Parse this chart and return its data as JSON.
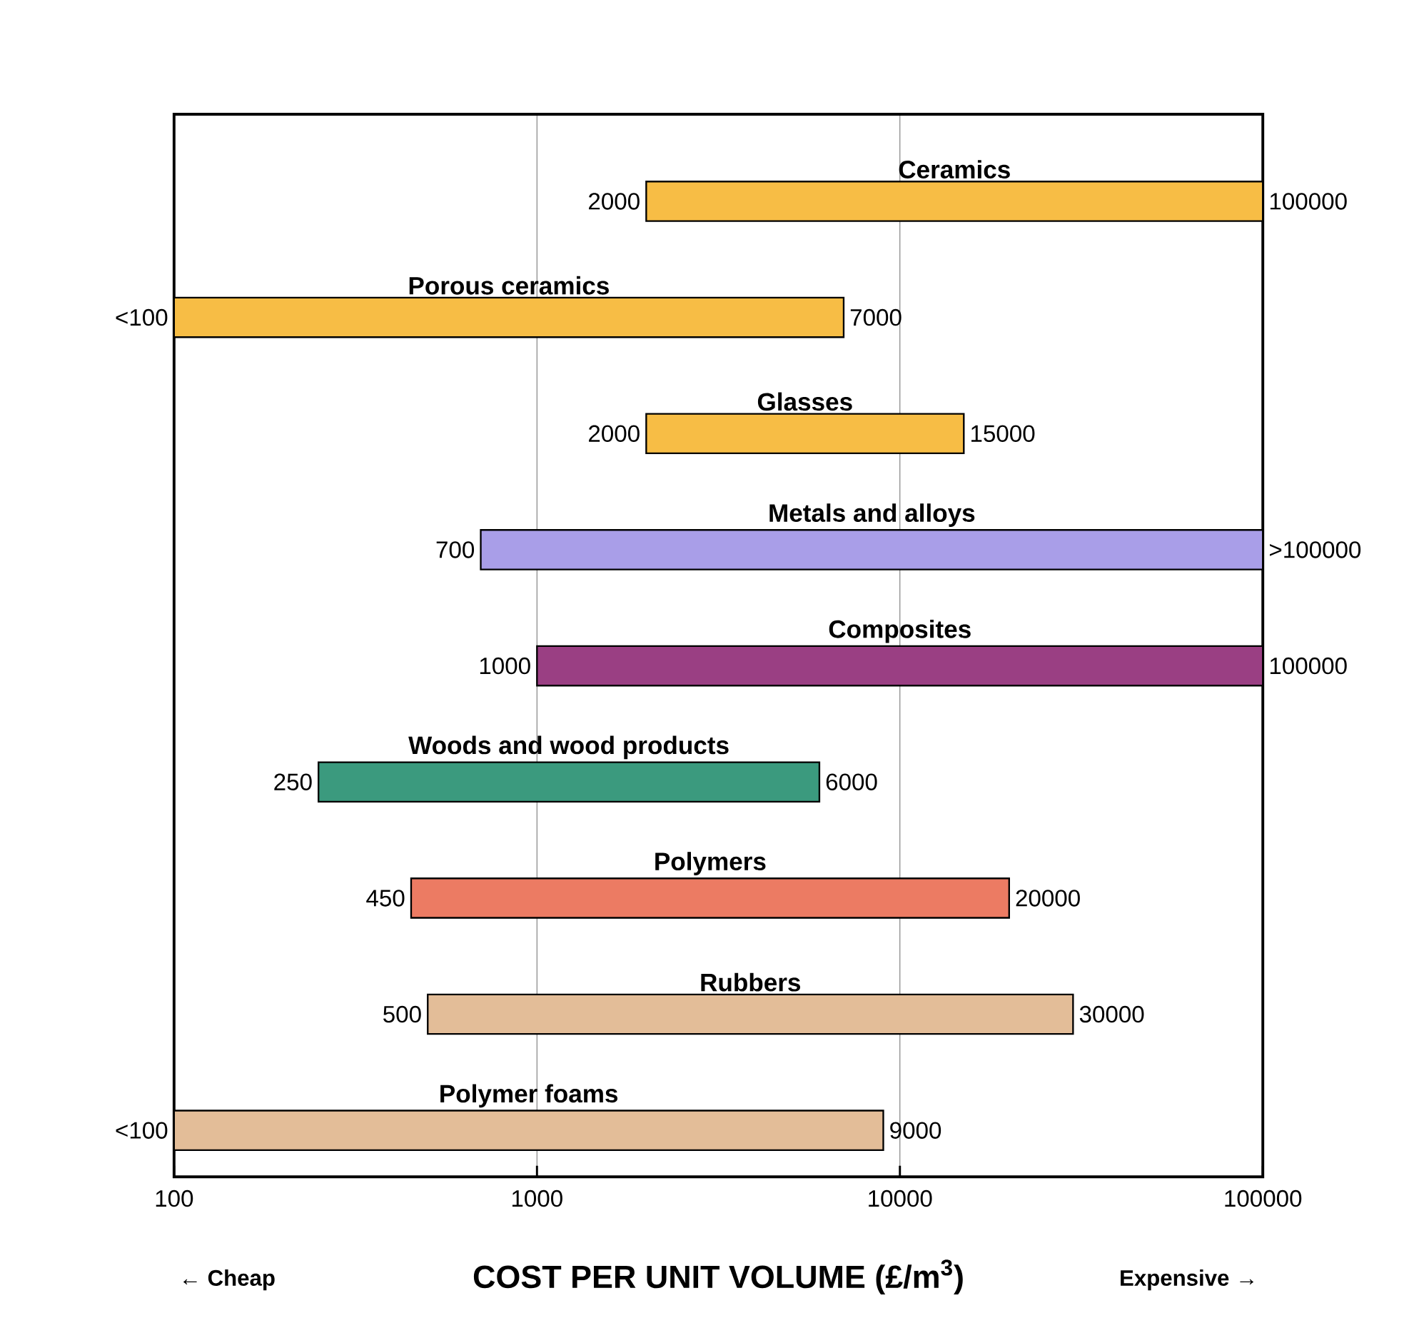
{
  "chart_data": {
    "type": "bar",
    "orientation": "horizontal",
    "xlabel": "COST PER UNIT VOLUME (£/m$^{3}$)",
    "categories": [
      "Ceramics",
      "Porous ceramics",
      "Glasses",
      "Metals and alloys",
      "Composites",
      "Woods and wood products",
      "Polymers",
      "Rubbers",
      "Polymer foams"
    ],
    "base": [
      2000,
      100,
      2000,
      700,
      1000,
      250,
      450,
      500,
      100
    ],
    "values": [
      98000,
      6900,
      13000,
      99300,
      99000,
      5750,
      19550,
      29500,
      8900
    ],
    "value_labels": [
      "100000",
      "7000",
      "15000",
      ">100000",
      "100000",
      "6000",
      "20000",
      "30000",
      "9000"
    ],
    "colors": [
      "#f7bd45",
      "#f7bd45",
      "#f7bd45",
      "#a99ee8",
      "#9a3f83",
      "#3b9a7e",
      "#ec7b63",
      "#e3bd98",
      "#e3bd98"
    ],
    "log": "x",
    "xlim": [
      100,
      100000
    ],
    "xticks": [
      100,
      1000,
      10000,
      100000
    ],
    "grid": "x",
    "annotations": [
      {
        "text": "2000",
        "x": 2000,
        "y": "Ceramics"
      },
      {
        "text": "<100",
        "x": 100,
        "y": "Porous ceramics"
      },
      {
        "text": "2000",
        "x": 2000,
        "y": "Glasses"
      },
      {
        "text": "700",
        "x": 700,
        "y": "Metals and alloys"
      },
      {
        "text": "1000",
        "x": 1000,
        "y": "Composites"
      },
      {
        "text": "250",
        "x": 250,
        "y": "Woods and wood products"
      },
      {
        "text": "450",
        "x": 450,
        "y": "Polymers"
      },
      {
        "text": "500",
        "x": 500,
        "y": "Rubbers"
      },
      {
        "text": "<100",
        "x": 100,
        "y": "Polymer foams"
      },
      "← Cheap",
      "Expensive →"
    ]
  }
}
